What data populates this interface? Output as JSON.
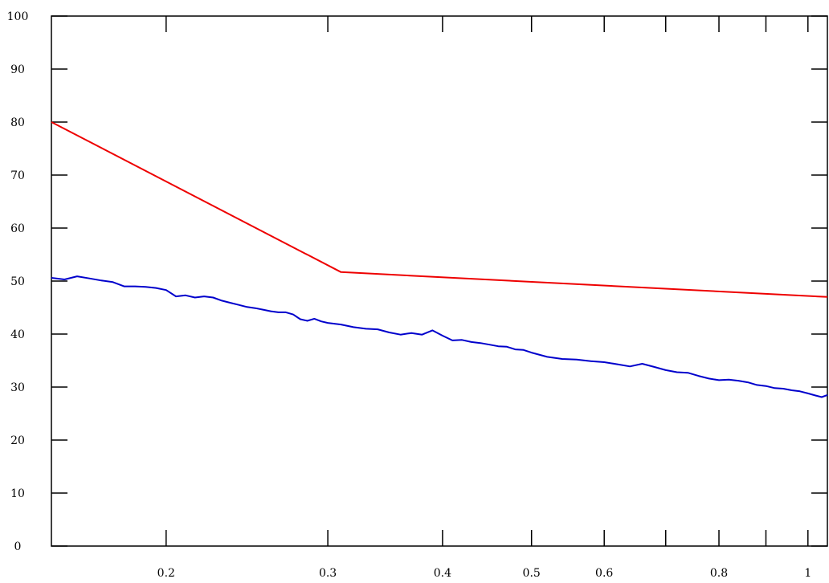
{
  "chart_data": {
    "type": "line",
    "title": "",
    "xlabel": "",
    "ylabel": "",
    "xscale": "log",
    "xlim": [
      0.15,
      1.05
    ],
    "ylim": [
      0,
      100
    ],
    "grid": false,
    "x_ticks": [
      {
        "value": 0.2,
        "label": "0.2"
      },
      {
        "value": 0.3,
        "label": "0.3"
      },
      {
        "value": 0.4,
        "label": "0.4"
      },
      {
        "value": 0.5,
        "label": "0.5"
      },
      {
        "value": 0.6,
        "label": "0.6"
      },
      {
        "value": 0.8,
        "label": "0.8"
      },
      {
        "value": 1.0,
        "label": "1"
      }
    ],
    "x_minor_ticks": [
      0.7,
      0.9
    ],
    "y_ticks": [
      {
        "value": 0,
        "label": "0"
      },
      {
        "value": 10,
        "label": "10"
      },
      {
        "value": 20,
        "label": "20"
      },
      {
        "value": 30,
        "label": "30"
      },
      {
        "value": 40,
        "label": "40"
      },
      {
        "value": 50,
        "label": "50"
      },
      {
        "value": 60,
        "label": "60"
      },
      {
        "value": 70,
        "label": "70"
      },
      {
        "value": 80,
        "label": "80"
      },
      {
        "value": 90,
        "label": "90"
      },
      {
        "value": 100,
        "label": "100"
      }
    ],
    "series": [
      {
        "color": "#ee0000",
        "x": [
          0.15,
          0.31,
          1.05
        ],
        "y": [
          80,
          51.7,
          47
        ]
      },
      {
        "color": "#0000cc",
        "x": [
          0.15,
          0.155,
          0.16,
          0.165,
          0.17,
          0.175,
          0.18,
          0.185,
          0.19,
          0.195,
          0.2,
          0.205,
          0.21,
          0.215,
          0.22,
          0.225,
          0.23,
          0.235,
          0.24,
          0.245,
          0.25,
          0.255,
          0.26,
          0.265,
          0.27,
          0.275,
          0.28,
          0.285,
          0.29,
          0.295,
          0.3,
          0.31,
          0.32,
          0.33,
          0.34,
          0.35,
          0.36,
          0.37,
          0.38,
          0.39,
          0.4,
          0.41,
          0.42,
          0.43,
          0.44,
          0.45,
          0.46,
          0.47,
          0.48,
          0.49,
          0.5,
          0.52,
          0.54,
          0.56,
          0.58,
          0.6,
          0.62,
          0.64,
          0.66,
          0.68,
          0.7,
          0.72,
          0.74,
          0.76,
          0.78,
          0.8,
          0.82,
          0.84,
          0.86,
          0.88,
          0.9,
          0.92,
          0.94,
          0.96,
          0.98,
          1.0,
          1.02,
          1.035,
          1.05
        ],
        "y": [
          50.6,
          50.3,
          50.9,
          50.5,
          50.1,
          49.8,
          49.0,
          49.0,
          48.9,
          48.7,
          48.3,
          47.1,
          47.3,
          46.9,
          47.1,
          46.9,
          46.3,
          45.9,
          45.5,
          45.1,
          44.9,
          44.6,
          44.3,
          44.1,
          44.1,
          43.7,
          42.8,
          42.5,
          42.9,
          42.4,
          42.1,
          41.8,
          41.3,
          41.0,
          40.9,
          40.3,
          39.9,
          40.2,
          39.9,
          40.7,
          39.7,
          38.8,
          38.9,
          38.5,
          38.3,
          38.0,
          37.7,
          37.6,
          37.1,
          37.0,
          36.5,
          35.7,
          35.3,
          35.2,
          34.9,
          34.7,
          34.3,
          33.9,
          34.4,
          33.8,
          33.2,
          32.8,
          32.7,
          32.1,
          31.6,
          31.3,
          31.4,
          31.2,
          30.9,
          30.4,
          30.2,
          29.8,
          29.7,
          29.4,
          29.2,
          28.8,
          28.4,
          28.1,
          28.5
        ]
      }
    ]
  }
}
